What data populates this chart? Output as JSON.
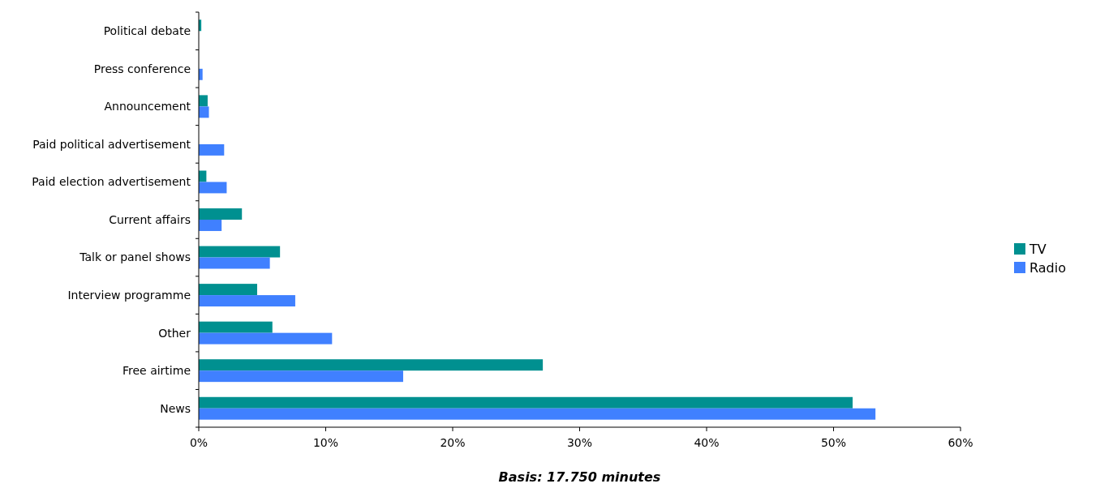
{
  "chart_data": {
    "type": "bar",
    "orientation": "horizontal",
    "categories": [
      "Political debate",
      "Press conference",
      "Announcement",
      "Paid political advertisement",
      "Paid election advertisement",
      "Current affairs",
      "Talk or panel shows",
      "Interview programme",
      "Other",
      "Free airtime",
      "News"
    ],
    "series": [
      {
        "name": "TV",
        "color": "#009090",
        "values": [
          0.2,
          0,
          0.7,
          0,
          0.6,
          3.4,
          6.4,
          4.6,
          5.8,
          27.1,
          51.5
        ]
      },
      {
        "name": "Radio",
        "color": "#4080ff",
        "values": [
          0,
          0.3,
          0.8,
          2.0,
          2.2,
          1.8,
          5.6,
          7.6,
          10.5,
          16.1,
          53.3
        ]
      }
    ],
    "xlim": [
      0,
      60
    ],
    "xticks": [
      {
        "value": 0,
        "label": "0%"
      },
      {
        "value": 10,
        "label": "10%"
      },
      {
        "value": 20,
        "label": "20%"
      },
      {
        "value": 30,
        "label": "30%"
      },
      {
        "value": 40,
        "label": "40%"
      },
      {
        "value": 50,
        "label": "50%"
      },
      {
        "value": 60,
        "label": "60%"
      }
    ],
    "grid": false,
    "legend": "right",
    "annotations": [
      "Basis: 17.750 minutes"
    ]
  }
}
